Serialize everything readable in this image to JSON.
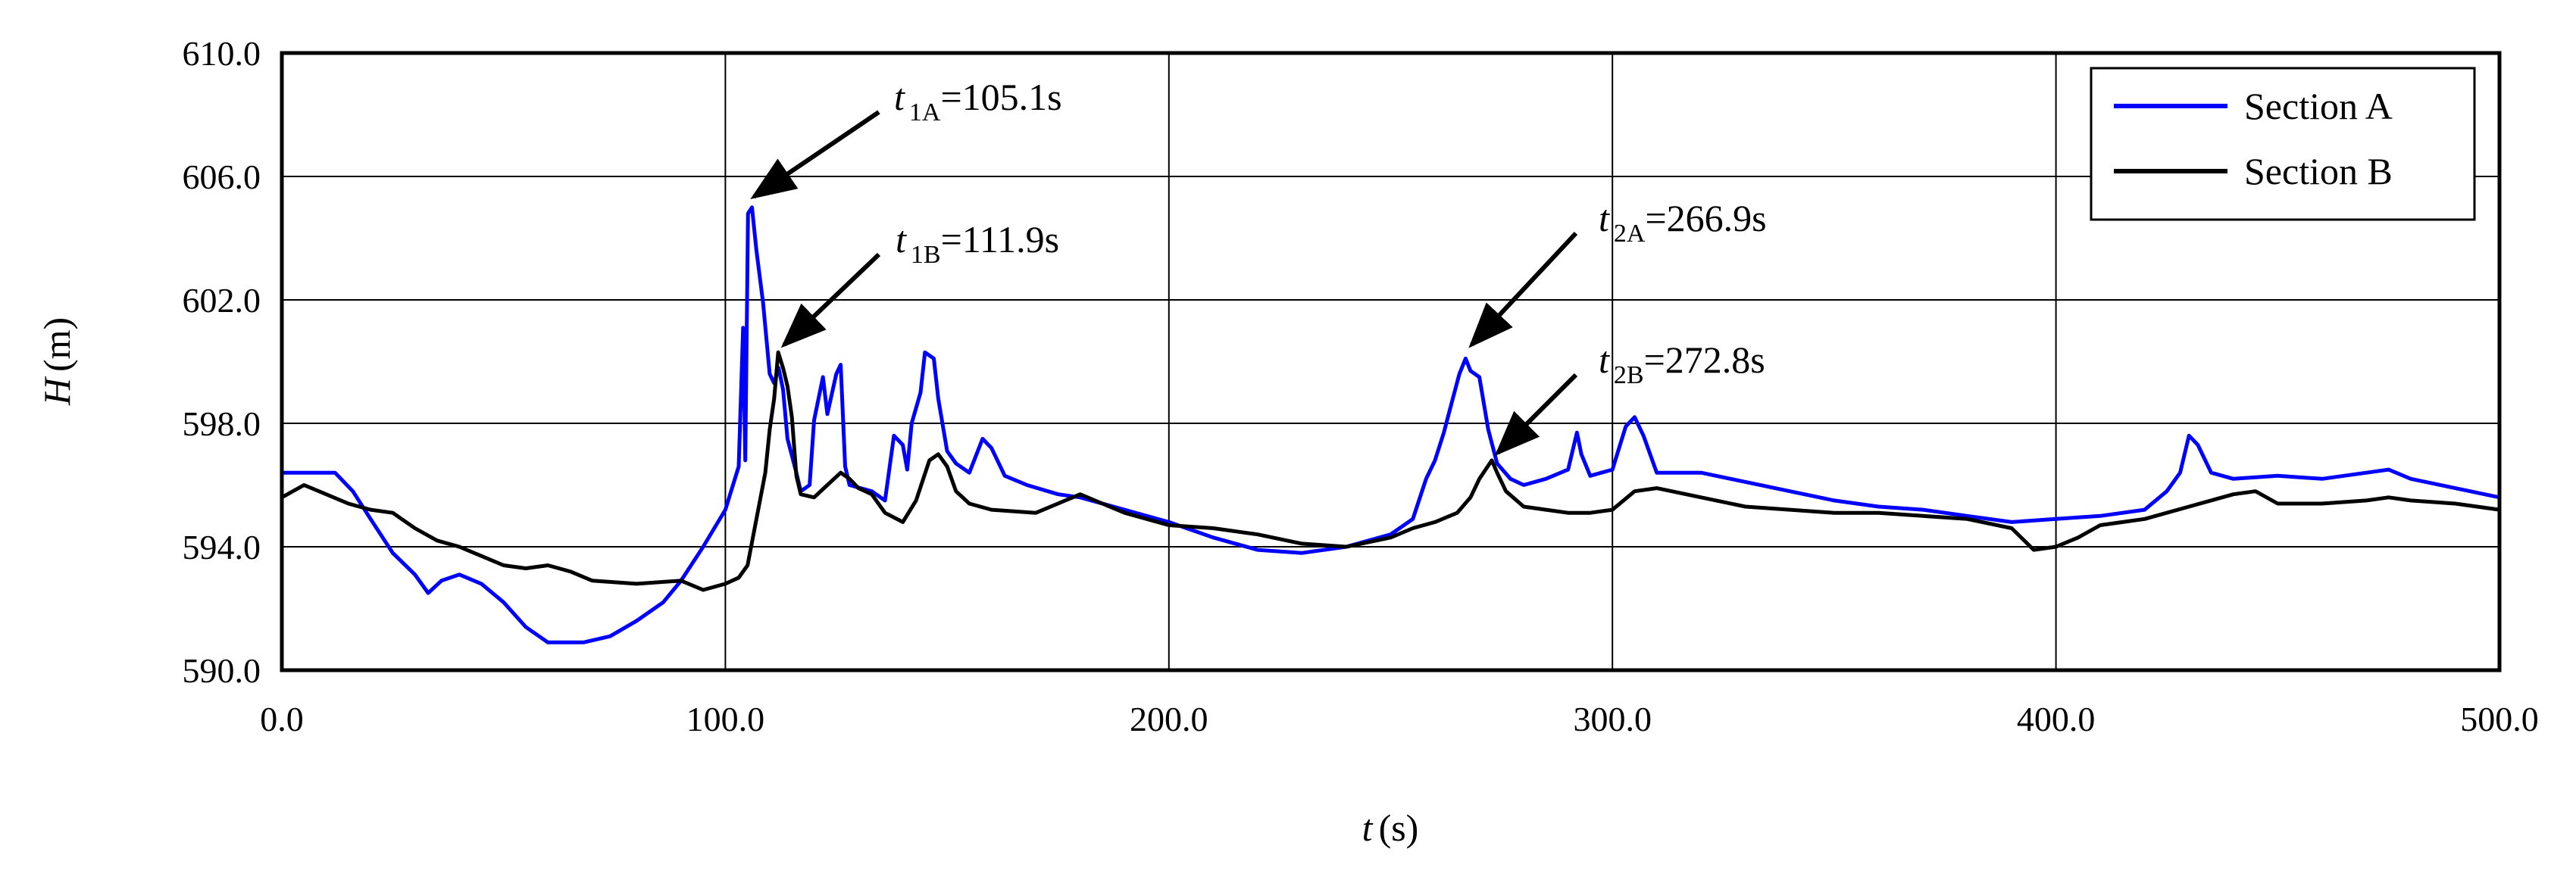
{
  "chart_data": {
    "type": "line",
    "xlabel_var": "t",
    "xlabel_unit": "(s)",
    "ylabel_var": "H",
    "ylabel_unit": "(m)",
    "xlim": [
      0,
      500
    ],
    "ylim": [
      590,
      610
    ],
    "x_ticks": [
      "0.0",
      "100.0",
      "200.0",
      "300.0",
      "400.0",
      "500.0"
    ],
    "y_ticks": [
      "590.0",
      "594.0",
      "598.0",
      "602.0",
      "606.0",
      "610.0"
    ],
    "grid": true,
    "legend_position": "top-right",
    "colors": {
      "Section A": "#0000ff",
      "Section B": "#000000"
    },
    "series": [
      {
        "name": "Section A",
        "color": "#0000ff",
        "points": [
          [
            0,
            596.4
          ],
          [
            12,
            596.4
          ],
          [
            16,
            595.8
          ],
          [
            20,
            594.9
          ],
          [
            25,
            593.8
          ],
          [
            30,
            593.1
          ],
          [
            33,
            592.5
          ],
          [
            36,
            592.9
          ],
          [
            40,
            593.1
          ],
          [
            45,
            592.8
          ],
          [
            50,
            592.2
          ],
          [
            55,
            591.4
          ],
          [
            60,
            590.9
          ],
          [
            68,
            590.9
          ],
          [
            74,
            591.1
          ],
          [
            80,
            591.6
          ],
          [
            86,
            592.2
          ],
          [
            90,
            592.9
          ],
          [
            95,
            594.0
          ],
          [
            100,
            595.2
          ],
          [
            103,
            596.6
          ],
          [
            104,
            601.1
          ],
          [
            104.5,
            596.8
          ],
          [
            105.1,
            604.8
          ],
          [
            106,
            605.0
          ],
          [
            107,
            603.6
          ],
          [
            108.5,
            601.9
          ],
          [
            110,
            599.6
          ],
          [
            111,
            599.3
          ],
          [
            112,
            599.8
          ],
          [
            113,
            599.1
          ],
          [
            114,
            597.5
          ],
          [
            116,
            596.4
          ],
          [
            117,
            595.8
          ],
          [
            119,
            596.0
          ],
          [
            120,
            598.1
          ],
          [
            122,
            599.5
          ],
          [
            123,
            598.3
          ],
          [
            125,
            599.6
          ],
          [
            126,
            599.9
          ],
          [
            127,
            596.6
          ],
          [
            128,
            596.0
          ],
          [
            133,
            595.8
          ],
          [
            136,
            595.5
          ],
          [
            138,
            597.6
          ],
          [
            140,
            597.3
          ],
          [
            141,
            596.5
          ],
          [
            142,
            598.0
          ],
          [
            144,
            599.0
          ],
          [
            145,
            600.3
          ],
          [
            147,
            600.1
          ],
          [
            148,
            598.8
          ],
          [
            150,
            597.1
          ],
          [
            152,
            596.7
          ],
          [
            155,
            596.4
          ],
          [
            158,
            597.5
          ],
          [
            160,
            597.2
          ],
          [
            163,
            596.3
          ],
          [
            168,
            596.0
          ],
          [
            175,
            595.7
          ],
          [
            180,
            595.6
          ],
          [
            190,
            595.2
          ],
          [
            200,
            594.8
          ],
          [
            210,
            594.3
          ],
          [
            220,
            593.9
          ],
          [
            230,
            593.8
          ],
          [
            240,
            594.0
          ],
          [
            250,
            594.4
          ],
          [
            255,
            594.9
          ],
          [
            258,
            596.2
          ],
          [
            260,
            596.8
          ],
          [
            262,
            597.7
          ],
          [
            264,
            598.8
          ],
          [
            265.5,
            599.6
          ],
          [
            266.9,
            600.1
          ],
          [
            268,
            599.7
          ],
          [
            270,
            599.5
          ],
          [
            272,
            597.8
          ],
          [
            274,
            596.7
          ],
          [
            277,
            596.2
          ],
          [
            280,
            596.0
          ],
          [
            285,
            596.2
          ],
          [
            290,
            596.5
          ],
          [
            292,
            597.7
          ],
          [
            293,
            597.0
          ],
          [
            295,
            596.3
          ],
          [
            300,
            596.5
          ],
          [
            303,
            597.9
          ],
          [
            305,
            598.2
          ],
          [
            307,
            597.6
          ],
          [
            310,
            596.4
          ],
          [
            320,
            596.4
          ],
          [
            330,
            596.1
          ],
          [
            340,
            595.8
          ],
          [
            350,
            595.5
          ],
          [
            360,
            595.3
          ],
          [
            370,
            595.2
          ],
          [
            380,
            595.0
          ],
          [
            390,
            594.8
          ],
          [
            400,
            594.9
          ],
          [
            410,
            595.0
          ],
          [
            420,
            595.2
          ],
          [
            425,
            595.8
          ],
          [
            428,
            596.4
          ],
          [
            430,
            597.6
          ],
          [
            432,
            597.3
          ],
          [
            435,
            596.4
          ],
          [
            440,
            596.2
          ],
          [
            450,
            596.3
          ],
          [
            460,
            596.2
          ],
          [
            470,
            596.4
          ],
          [
            475,
            596.5
          ],
          [
            480,
            596.2
          ],
          [
            490,
            595.9
          ],
          [
            500,
            595.6
          ]
        ]
      },
      {
        "name": "Section B",
        "color": "#000000",
        "points": [
          [
            0,
            595.6
          ],
          [
            5,
            596.0
          ],
          [
            10,
            595.7
          ],
          [
            15,
            595.4
          ],
          [
            20,
            595.2
          ],
          [
            25,
            595.1
          ],
          [
            30,
            594.6
          ],
          [
            35,
            594.2
          ],
          [
            40,
            594.0
          ],
          [
            45,
            593.7
          ],
          [
            50,
            593.4
          ],
          [
            55,
            593.3
          ],
          [
            60,
            593.4
          ],
          [
            65,
            593.2
          ],
          [
            70,
            592.9
          ],
          [
            80,
            592.8
          ],
          [
            90,
            592.9
          ],
          [
            95,
            592.6
          ],
          [
            100,
            592.8
          ],
          [
            103,
            593.0
          ],
          [
            105,
            593.4
          ],
          [
            107,
            594.9
          ],
          [
            109,
            596.4
          ],
          [
            110,
            597.8
          ],
          [
            111,
            598.8
          ],
          [
            111.9,
            600.3
          ],
          [
            113,
            599.8
          ],
          [
            114,
            599.2
          ],
          [
            115,
            598.2
          ],
          [
            116,
            596.3
          ],
          [
            117,
            595.7
          ],
          [
            120,
            595.6
          ],
          [
            123,
            596.0
          ],
          [
            126,
            596.4
          ],
          [
            128,
            596.2
          ],
          [
            130,
            595.9
          ],
          [
            133,
            595.7
          ],
          [
            136,
            595.1
          ],
          [
            140,
            594.8
          ],
          [
            143,
            595.5
          ],
          [
            146,
            596.8
          ],
          [
            148,
            597.0
          ],
          [
            150,
            596.6
          ],
          [
            152,
            595.8
          ],
          [
            155,
            595.4
          ],
          [
            160,
            595.2
          ],
          [
            170,
            595.1
          ],
          [
            180,
            595.7
          ],
          [
            185,
            595.4
          ],
          [
            190,
            595.1
          ],
          [
            200,
            594.7
          ],
          [
            210,
            594.6
          ],
          [
            220,
            594.4
          ],
          [
            230,
            594.1
          ],
          [
            240,
            594.0
          ],
          [
            250,
            594.3
          ],
          [
            255,
            594.6
          ],
          [
            260,
            594.8
          ],
          [
            265,
            595.1
          ],
          [
            268,
            595.6
          ],
          [
            270,
            596.2
          ],
          [
            272.8,
            596.8
          ],
          [
            274,
            596.4
          ],
          [
            276,
            595.8
          ],
          [
            280,
            595.3
          ],
          [
            285,
            595.2
          ],
          [
            290,
            595.1
          ],
          [
            295,
            595.1
          ],
          [
            300,
            595.2
          ],
          [
            305,
            595.8
          ],
          [
            310,
            595.9
          ],
          [
            320,
            595.6
          ],
          [
            330,
            595.3
          ],
          [
            340,
            595.2
          ],
          [
            350,
            595.1
          ],
          [
            360,
            595.1
          ],
          [
            370,
            595.0
          ],
          [
            380,
            594.9
          ],
          [
            390,
            594.6
          ],
          [
            395,
            593.9
          ],
          [
            400,
            594.0
          ],
          [
            405,
            594.3
          ],
          [
            410,
            594.7
          ],
          [
            420,
            594.9
          ],
          [
            430,
            595.3
          ],
          [
            440,
            595.7
          ],
          [
            445,
            595.8
          ],
          [
            450,
            595.4
          ],
          [
            460,
            595.4
          ],
          [
            470,
            595.5
          ],
          [
            475,
            595.6
          ],
          [
            480,
            595.5
          ],
          [
            490,
            595.4
          ],
          [
            500,
            595.2
          ]
        ]
      }
    ],
    "annotations": [
      {
        "var": "t",
        "sub": "1A",
        "value": "=105.1s",
        "target_x": 105.1,
        "target_y": 605.2
      },
      {
        "var": "t",
        "sub": "1B",
        "value": "=111.9s",
        "target_x": 111.9,
        "target_y": 600.4
      },
      {
        "var": "t",
        "sub": "2A",
        "value": "=266.9s",
        "target_x": 266.9,
        "target_y": 600.4
      },
      {
        "var": "t",
        "sub": "2B",
        "value": "=272.8s",
        "target_x": 272.8,
        "target_y": 596.9
      }
    ]
  }
}
